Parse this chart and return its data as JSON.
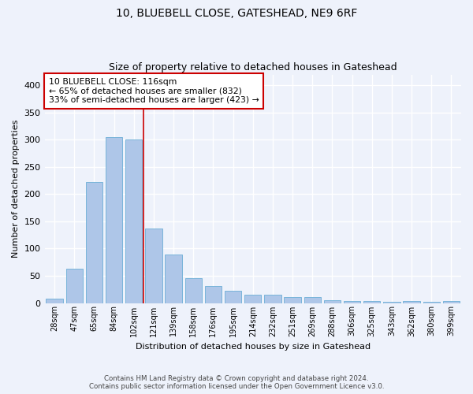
{
  "title": "10, BLUEBELL CLOSE, GATESHEAD, NE9 6RF",
  "subtitle": "Size of property relative to detached houses in Gateshead",
  "xlabel": "Distribution of detached houses by size in Gateshead",
  "ylabel": "Number of detached properties",
  "categories": [
    "28sqm",
    "47sqm",
    "65sqm",
    "84sqm",
    "102sqm",
    "121sqm",
    "139sqm",
    "158sqm",
    "176sqm",
    "195sqm",
    "214sqm",
    "232sqm",
    "251sqm",
    "269sqm",
    "288sqm",
    "306sqm",
    "325sqm",
    "343sqm",
    "362sqm",
    "380sqm",
    "399sqm"
  ],
  "values": [
    8,
    63,
    222,
    305,
    301,
    137,
    89,
    46,
    31,
    23,
    15,
    15,
    11,
    11,
    5,
    4,
    4,
    2,
    3,
    2,
    4
  ],
  "bar_color": "#aec6e8",
  "bar_edge_color": "#6baed6",
  "vline_x": 4.5,
  "vline_color": "#cc0000",
  "annotation_text": "10 BLUEBELL CLOSE: 116sqm\n← 65% of detached houses are smaller (832)\n33% of semi-detached houses are larger (423) →",
  "annotation_box_color": "white",
  "annotation_box_edge_color": "#cc0000",
  "ylim": [
    0,
    420
  ],
  "footer_line1": "Contains HM Land Registry data © Crown copyright and database right 2024.",
  "footer_line2": "Contains public sector information licensed under the Open Government Licence v3.0.",
  "bg_color": "#eef2fb",
  "grid_color": "white"
}
